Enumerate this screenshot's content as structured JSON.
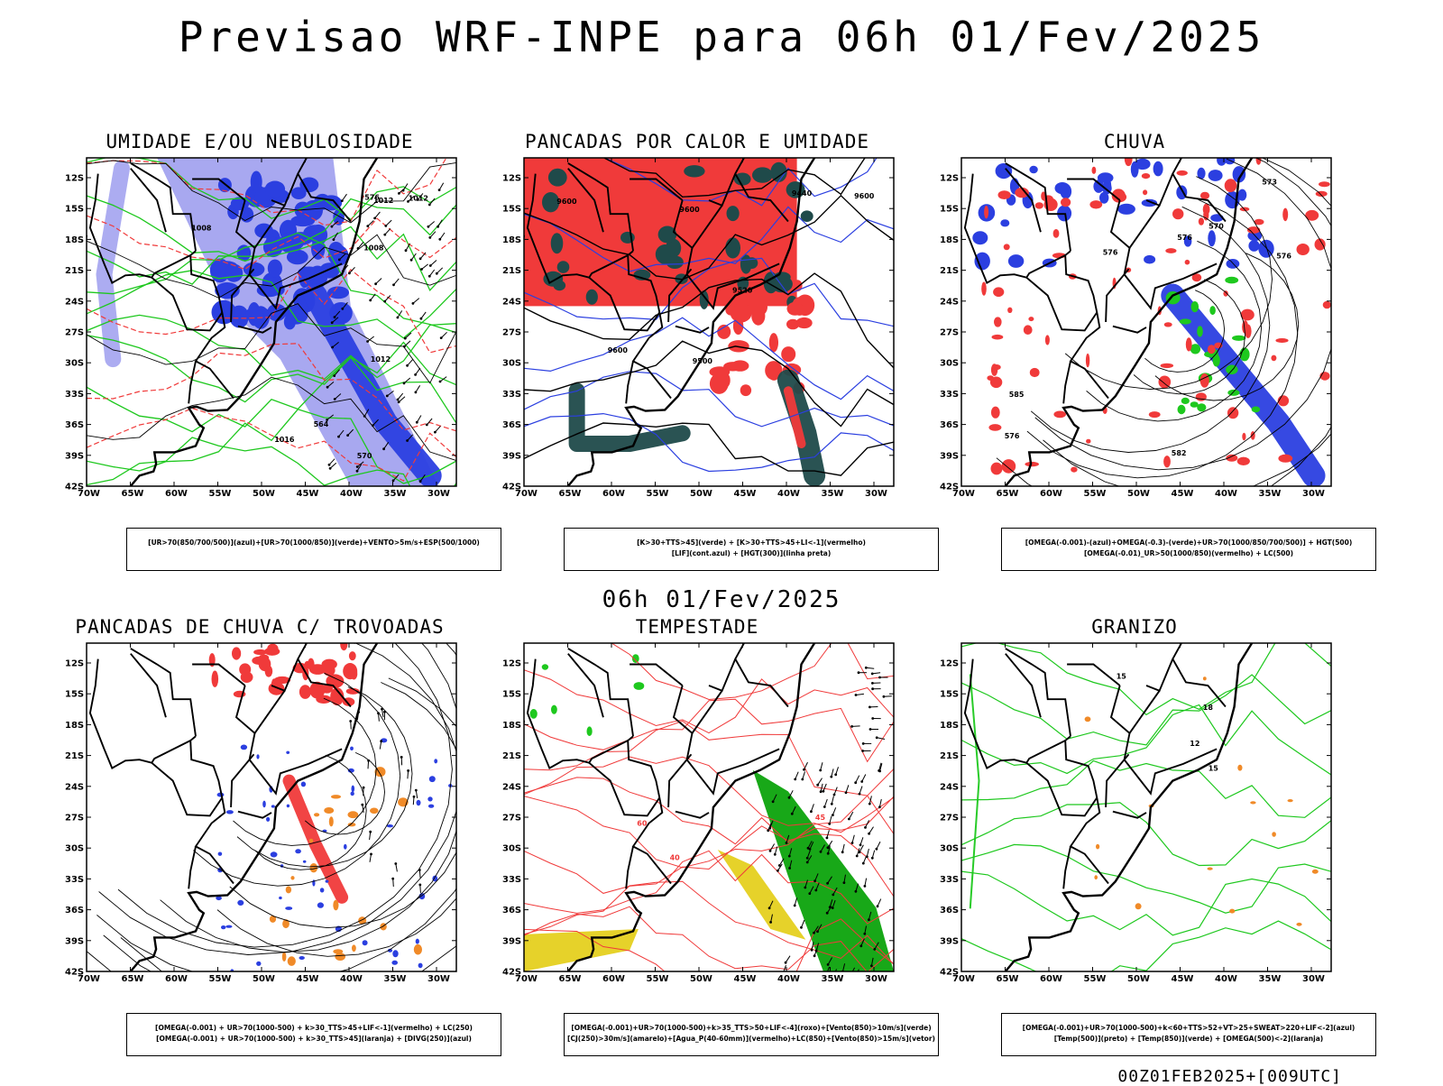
{
  "title": "Previsao WRF-INPE  para 06h 01/Fev/2025",
  "mid_title": "06h 01/Fev/2025",
  "footer": "00Z01FEB2025+[009UTC]",
  "axes": {
    "lat_labels": [
      "12S",
      "15S",
      "18S",
      "21S",
      "24S",
      "27S",
      "30S",
      "33S",
      "36S",
      "39S",
      "42S"
    ],
    "lon_labels": [
      "70W",
      "65W",
      "60W",
      "55W",
      "50W",
      "45W",
      "40W",
      "35W",
      "30W"
    ]
  },
  "colors": {
    "blue": "#2b3fe0",
    "lightblue": "#a8a8f0",
    "green": "#1ec81e",
    "red": "#f03a3a",
    "darkteal": "#1f4a4a",
    "orange": "#f08a28",
    "yellow": "#e6d22a"
  },
  "panels": [
    {
      "id": "umidade",
      "title": "UMIDADE E/OU NEBULOSIDADE",
      "legend": [
        "[UR>70(850/700/500)](azul)+[UR>70(1000/850)](verde)+VENTO>5m/s+ESP(500/1000)"
      ],
      "contour_labels": [
        "1012",
        "1008",
        "1012",
        "1012",
        "1008",
        "1016",
        "576",
        "570",
        "564"
      ]
    },
    {
      "id": "pancadas",
      "title": "PANCADAS POR CALOR E UMIDADE",
      "legend": [
        "[K>30+TTS>45](verde) + [K>30+TTS>45+LI<-1](vermelho)",
        "[LIF](cont.azul) + [HGT(300)](linha preta)"
      ],
      "contour_labels": [
        "9600",
        "9600",
        "9500",
        "9520",
        "9600",
        "9440",
        "9600"
      ]
    },
    {
      "id": "chuva",
      "title": "CHUVA",
      "legend": [
        "[OMEGA(-0.001)-(azul)+OMEGA(-0.3)-(verde)+UR>70(1000/850/700/500)] + HGT(500)",
        "[OMEGA(-0.01)_UR>50(1000/850)(vermelho) + LC(500)"
      ],
      "contour_labels": [
        "582",
        "576",
        "576",
        "573",
        "576",
        "576",
        "570",
        "585"
      ]
    },
    {
      "id": "trovoadas",
      "title": "PANCADAS DE CHUVA C/ TROVOADAS",
      "legend": [
        "[OMEGA(-0.001) + UR>70(1000-500) + k>30_TTS>45+LIF<-1](vermelho) + LC(250)",
        "[OMEGA(-0.001) + UR>70(1000-500) + k>30_TTS>45](laranja) + [DIVG(250)](azul)"
      ],
      "contour_labels": []
    },
    {
      "id": "tempestade",
      "title": "TEMPESTADE",
      "legend": [
        "[OMEGA(-0.001)+UR>70(1000-500)+k>35_TTS>50+LIF<-4](roxo)+[Vento(850)>10m/s](verde)",
        "[CJ(250)>30m/s](amarelo)+[Agua_P(40-60mm)](vermelho)+LC(850)+[Vento(850)>15m/s](vetor)"
      ],
      "contour_labels": [
        "40",
        "60",
        "45"
      ]
    },
    {
      "id": "granizo",
      "title": "GRANIZO",
      "legend": [
        "[OMEGA(-0.001)+UR>70(1000-500)+k<60+TTS>52+VT>25+SWEAT>220+LIF<-2](azul)",
        "[Temp(500)](preto) + [Temp(850)](verde) + [OMEGA(500)<-2](laranja)"
      ],
      "contour_labels": [
        "15",
        "12",
        "15",
        "18"
      ]
    }
  ]
}
